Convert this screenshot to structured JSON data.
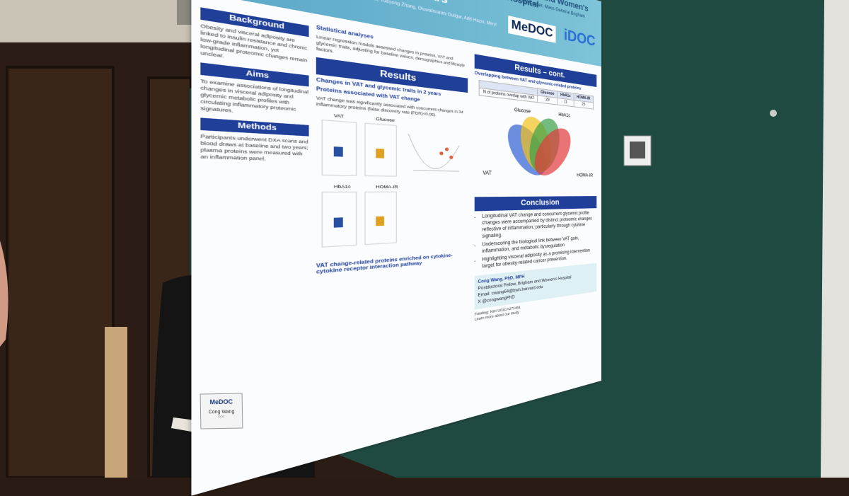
{
  "poster": {
    "header": {
      "title": "Visceral adiposity accumulation, glycemic metabolic profiles, and inflammatory proteomic alterations in two years",
      "authors": "Cong Wang, Kaori Sakuma, Ayano Saito, Edward Giovannucci, Yuesong Zhang, Oluwaferanmi Ouligar, Aditi Hazra, Meryl LeBoff, Deirdre Tobias",
      "hospital": "Brigham and Women's Hospital",
      "hospital_sub": "Founding Member, Mass General Brigham",
      "logo_1": "MeDOC",
      "logo_2": "iDOC"
    },
    "left_column": [
      {
        "heading": "Background",
        "text": "Obesity and visceral adiposity are linked to insulin resistance and chronic low-grade inflammation, yet longitudinal proteomic changes remain unclear."
      },
      {
        "heading": "Aims",
        "text": "To examine associations of longitudinal changes in visceral adiposity and glycemic metabolic profiles with circulating inflammatory proteomic signatures."
      },
      {
        "heading": "Methods",
        "text": "Participants underwent DXA scans and blood draws at baseline and two years; plasma proteins were measured with an inflammation panel."
      }
    ],
    "middle_column": {
      "stats_heading": "Statistical analyses",
      "stats_text": "Linear regression models assessed changes in proteins, VAT and glycemic traits, adjusting for baseline values, demographics and lifestyle factors.",
      "results_heading": "Results",
      "results_sub": "Changes in VAT and glycemic traits in 2 years",
      "proteins_heading": "Proteins associated with VAT change",
      "proteins_text": "VAT change was significantly associated with concurrent changes in 34 inflammatory proteins (false discovery rate (FDR)<0.05).",
      "pathway_heading": "VAT change-related proteins enriched on cytokine-cytokine receptor interaction pathway",
      "panel_labels": [
        "VAT",
        "Glucose",
        "HbA1c",
        "HOMA-IR"
      ]
    },
    "right_column": {
      "results_heading": "Results – cont.",
      "overlap_heading": "Overlapping between VAT and glycemic-related proteins",
      "table": {
        "header": [
          "Glucose",
          "HbA1c",
          "HOMA-IR"
        ],
        "row_label": "N of proteins overlap with VAT",
        "row": [
          "29",
          "11",
          "25"
        ]
      },
      "venn_labels": [
        "Glucose",
        "HbA1c",
        "VAT",
        "HOMA-IR"
      ],
      "conclusion_heading": "Conclusion",
      "conclusions": [
        "Longitudinal VAT change and concurrent glycemic profile changes were accompanied by distinct proteomic changes reflective of inflammation, particularly through cytokine signaling.",
        "Underscoring the biological link between VAT gain, inflammation, and metabolic dysregulation",
        "Highlighting visceral adiposity as a promising intervention target for obesity-related cancer prevention."
      ],
      "contact": [
        "Cong Wang, PhD, MPH",
        "Postdoctoral Fellow, Brigham and Women's Hospital",
        "Email: cwang64@bwh.harvard.edu",
        "X @congwangPhD"
      ],
      "funding": "Funding: NIH U01CA271461",
      "more": "Learn more about our study"
    }
  },
  "badge": {
    "logo": "MeDOC",
    "name": "Cong Wang",
    "org": "DOC"
  }
}
